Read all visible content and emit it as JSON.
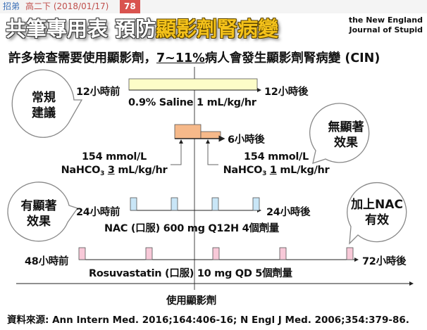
{
  "topbar": {
    "user": "招弟",
    "meta": "高二下 (2018/01/17)",
    "badge": "78"
  },
  "title": {
    "prefix": "共筆專用表 預防",
    "highlight": "顯影劑腎病變"
  },
  "logo": {
    "line1": "the New England",
    "line2": "Journal of Stupid"
  },
  "subtitle": {
    "part1": "許多檢查需要使用顯影劑，",
    "underlined": "7~11%",
    "part2": "病人會發生顯影劑腎病變 (CIN)"
  },
  "saline": {
    "start": "12小時前",
    "end": "12小時後",
    "label": "0.9% Saline 1 mL/kg/hr"
  },
  "bicarb": {
    "end": "6小時後",
    "left": {
      "conc": "154 mmol/L",
      "drug": "NaHCO",
      "sub": "3",
      "rate": "3",
      "unit": " mL/kg/hr"
    },
    "right": {
      "conc": "154 mmol/L",
      "drug": "NaHCO",
      "sub": "3",
      "rate": "1",
      "unit": " mL/kg/hr"
    }
  },
  "nac": {
    "start": "24小時前",
    "end": "24小時後",
    "label": "NAC (口服) 600 mg Q12H 4個劑量",
    "doses": 4
  },
  "rosuvastatin": {
    "start": "48小時前",
    "end": "72小時後",
    "label": "Rosuvastatin (口服) 10 mg QD 5個劑量",
    "doses": 5
  },
  "axis": {
    "label": "使用顯影劑"
  },
  "bubbles": {
    "routine": [
      "常規",
      "建議"
    ],
    "no_effect": [
      "無顯著",
      "效果"
    ],
    "effect": [
      "有顯著",
      "效果"
    ],
    "nac_effective": [
      "加上NAC",
      "有效"
    ]
  },
  "source": "資料來源: Ann Intern Med. 2016;164:406-16; N Engl J Med. 2006;354:379-86.",
  "colors": {
    "saline": "#fdfdc8",
    "bicarb": "#f6b98a",
    "nac": "#c9e6f7",
    "rosuvastatin": "#f8c9d8",
    "badge": "#d9534f",
    "title_highlight": "#f4c21a"
  }
}
